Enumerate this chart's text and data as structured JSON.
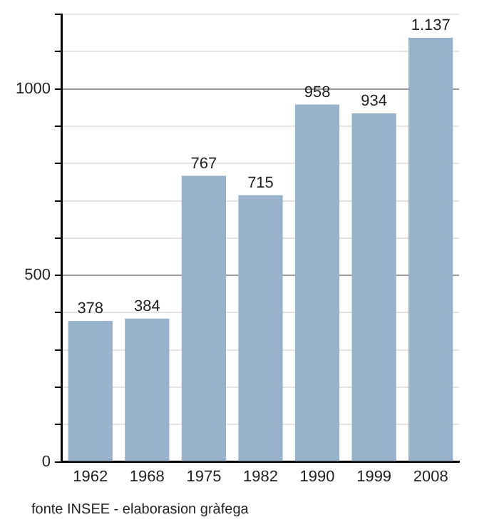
{
  "chart_data": {
    "type": "bar",
    "categories": [
      "1962",
      "1968",
      "1975",
      "1982",
      "1990",
      "1999",
      "2008"
    ],
    "values": [
      378,
      384,
      767,
      715,
      958,
      934,
      1137
    ],
    "value_labels": [
      "378",
      "384",
      "767",
      "715",
      "958",
      "934",
      "1.137"
    ],
    "color": "#98b2cc",
    "ylim": [
      0,
      1200
    ],
    "yticks": [
      0,
      {
        "value": 100,
        "label": null
      },
      {
        "value": 200,
        "label": null
      },
      {
        "value": 300,
        "label": null
      },
      {
        "value": 400,
        "label": null
      },
      500,
      {
        "value": 600,
        "label": null
      },
      {
        "value": 700,
        "label": null
      },
      {
        "value": 800,
        "label": null
      },
      {
        "value": 900,
        "label": null
      },
      1000,
      {
        "value": 1100,
        "label": null
      },
      {
        "value": 1200,
        "label": null
      }
    ],
    "grid": "y",
    "annotations": [
      "fonte INSEE - elaborasion gràfega"
    ]
  }
}
